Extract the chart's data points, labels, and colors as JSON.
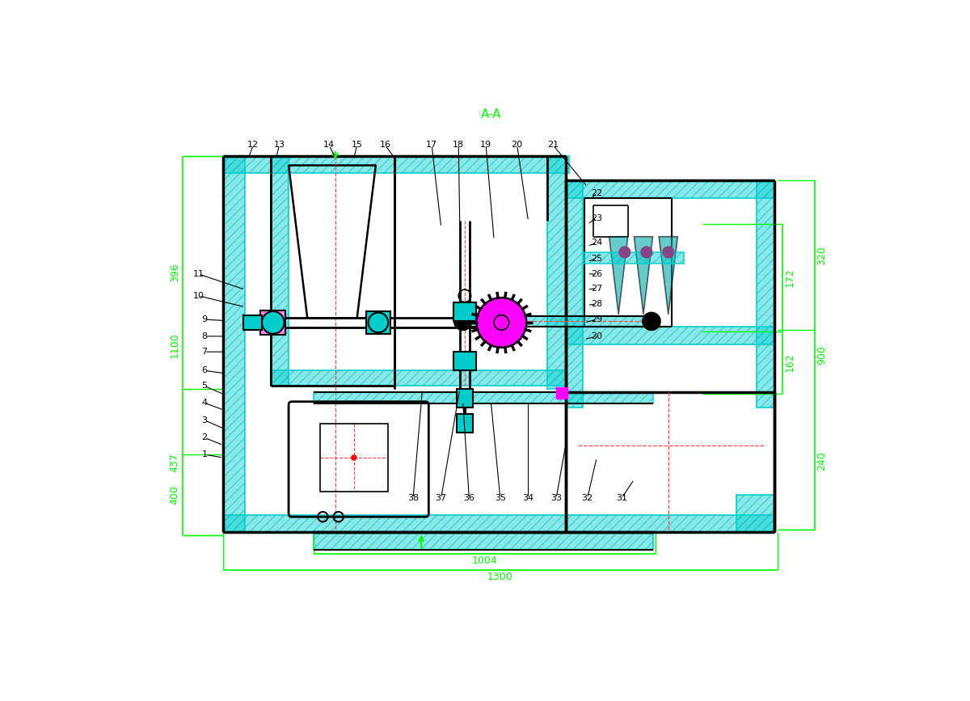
{
  "bg_color": "#ffffff",
  "cyan": "#00CCCC",
  "green": "#00FF00",
  "black": "#000000",
  "red_dash": "#FF4444",
  "magenta": "#FF00FF",
  "cyan_fill": "#00CCCC",
  "figsize": [
    12.0,
    8.67
  ],
  "dpi": 100,
  "title": "A-A",
  "dims_left": [
    "1100",
    "396",
    "437",
    "400"
  ],
  "dims_right": [
    "900",
    "320",
    "162",
    "172",
    "240"
  ],
  "dims_bottom": [
    "1004",
    "1300"
  ]
}
